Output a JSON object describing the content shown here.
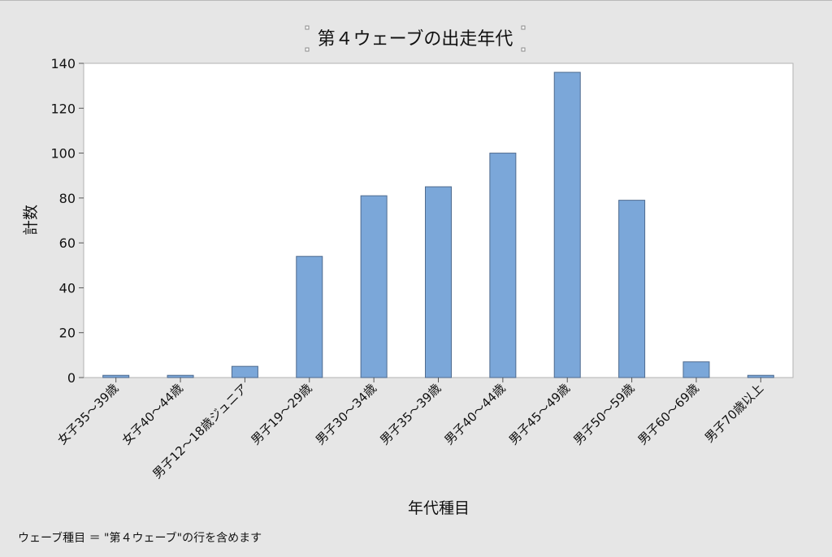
{
  "chart_data": {
    "type": "bar",
    "title": "第４ウェーブの出走年代",
    "xlabel": "年代種目",
    "ylabel": "計数",
    "ylim": [
      0,
      140
    ],
    "yticks": [
      0,
      20,
      40,
      60,
      80,
      100,
      120,
      140
    ],
    "categories": [
      "女子35～39歳",
      "女子40～44歳",
      "男子12～18歳ジュニア",
      "男子19～29歳",
      "男子30～34歳",
      "男子35～39歳",
      "男子40～44歳",
      "男子45～49歳",
      "男子50～59歳",
      "男子60～69歳",
      "男子70歳以上"
    ],
    "values": [
      1,
      1,
      5,
      54,
      81,
      85,
      100,
      136,
      79,
      7,
      1
    ],
    "grid": false,
    "bar_color": "#7ba7d9",
    "bar_edge_color": "#4f6b8f"
  },
  "footnote": "ウェーブ種目 ＝ \"第４ウェーブ\"の行を含めます"
}
